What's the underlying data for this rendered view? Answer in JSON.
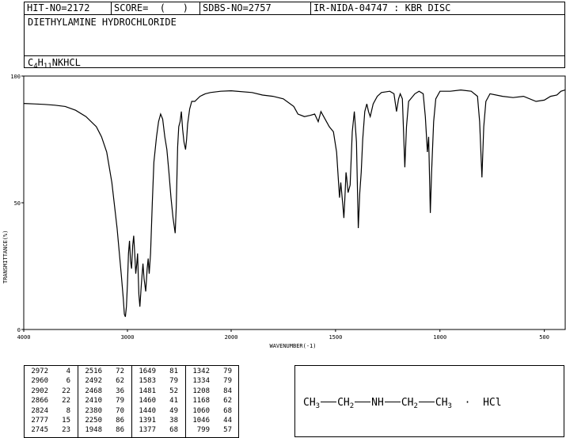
{
  "header": {
    "hit_no": "HIT-NO=2172",
    "score": "SCORE=  (   )",
    "sdbs_no": "SDBS-NO=2757",
    "ir_info": "IR-NIDA-04747 : KBR DISC",
    "compound_name": "DIETHYLAMINE HYDROCHLORIDE",
    "formula_parts": {
      "c": "C",
      "c_n": "4",
      "h": "H",
      "h_n": "11",
      "rest": "NKHCL"
    }
  },
  "chart_data": {
    "type": "line",
    "title": "",
    "xlabel": "WAVENUMBER(-1)",
    "ylabel": "TRANSMITTANCE(%)",
    "xlim": [
      4000,
      400
    ],
    "ylim": [
      0,
      100
    ],
    "x_ticks": [
      4000,
      3000,
      2000,
      1500,
      1000,
      500
    ],
    "y_ticks": [
      0,
      50,
      100
    ],
    "grid": false,
    "series": [
      {
        "name": "",
        "points": [
          [
            4000,
            89.2
          ],
          [
            3900,
            89
          ],
          [
            3800,
            88.8
          ],
          [
            3700,
            88.5
          ],
          [
            3600,
            88
          ],
          [
            3500,
            86.5
          ],
          [
            3400,
            84
          ],
          [
            3300,
            80
          ],
          [
            3250,
            76
          ],
          [
            3200,
            70
          ],
          [
            3150,
            58
          ],
          [
            3100,
            40
          ],
          [
            3060,
            22
          ],
          [
            3040,
            12
          ],
          [
            3030,
            6
          ],
          [
            3020,
            5
          ],
          [
            3010,
            9
          ],
          [
            3000,
            18
          ],
          [
            2990,
            30
          ],
          [
            2980,
            35
          ],
          [
            2970,
            27
          ],
          [
            2960,
            24
          ],
          [
            2950,
            33
          ],
          [
            2940,
            37
          ],
          [
            2930,
            30
          ],
          [
            2920,
            22
          ],
          [
            2910,
            26
          ],
          [
            2902,
            30
          ],
          [
            2890,
            14
          ],
          [
            2880,
            9
          ],
          [
            2866,
            18
          ],
          [
            2850,
            26
          ],
          [
            2840,
            20
          ],
          [
            2824,
            15
          ],
          [
            2810,
            24
          ],
          [
            2800,
            28
          ],
          [
            2790,
            22
          ],
          [
            2777,
            30
          ],
          [
            2760,
            50
          ],
          [
            2745,
            66
          ],
          [
            2720,
            76
          ],
          [
            2700,
            82
          ],
          [
            2680,
            85
          ],
          [
            2660,
            83
          ],
          [
            2640,
            76
          ],
          [
            2620,
            71
          ],
          [
            2600,
            62
          ],
          [
            2580,
            52
          ],
          [
            2560,
            44
          ],
          [
            2540,
            38
          ],
          [
            2530,
            48
          ],
          [
            2516,
            72
          ],
          [
            2505,
            80
          ],
          [
            2492,
            82
          ],
          [
            2480,
            86
          ],
          [
            2468,
            79
          ],
          [
            2455,
            74
          ],
          [
            2440,
            71
          ],
          [
            2430,
            75
          ],
          [
            2420,
            81
          ],
          [
            2410,
            84
          ],
          [
            2400,
            87
          ],
          [
            2380,
            90
          ],
          [
            2350,
            90
          ],
          [
            2300,
            92
          ],
          [
            2250,
            93
          ],
          [
            2200,
            93.5
          ],
          [
            2100,
            94
          ],
          [
            2000,
            94.2
          ],
          [
            1900,
            93.5
          ],
          [
            1850,
            92.5
          ],
          [
            1800,
            92
          ],
          [
            1750,
            91
          ],
          [
            1700,
            88
          ],
          [
            1680,
            85
          ],
          [
            1649,
            84
          ],
          [
            1620,
            84.5
          ],
          [
            1600,
            85
          ],
          [
            1583,
            82
          ],
          [
            1570,
            86
          ],
          [
            1550,
            83
          ],
          [
            1530,
            80
          ],
          [
            1510,
            78
          ],
          [
            1495,
            70
          ],
          [
            1481,
            52
          ],
          [
            1475,
            58
          ],
          [
            1465,
            49
          ],
          [
            1460,
            44
          ],
          [
            1455,
            52
          ],
          [
            1450,
            62
          ],
          [
            1447,
            60
          ],
          [
            1440,
            54
          ],
          [
            1430,
            57
          ],
          [
            1420,
            78
          ],
          [
            1410,
            86
          ],
          [
            1400,
            74
          ],
          [
            1391,
            40
          ],
          [
            1384,
            54
          ],
          [
            1377,
            62
          ],
          [
            1370,
            75
          ],
          [
            1360,
            86
          ],
          [
            1350,
            89
          ],
          [
            1342,
            86
          ],
          [
            1334,
            84
          ],
          [
            1320,
            89
          ],
          [
            1300,
            92
          ],
          [
            1280,
            93.5
          ],
          [
            1240,
            94
          ],
          [
            1220,
            93
          ],
          [
            1208,
            86
          ],
          [
            1198,
            91
          ],
          [
            1190,
            93
          ],
          [
            1180,
            91
          ],
          [
            1168,
            64
          ],
          [
            1160,
            80
          ],
          [
            1150,
            90
          ],
          [
            1120,
            93
          ],
          [
            1100,
            94
          ],
          [
            1080,
            93
          ],
          [
            1070,
            84
          ],
          [
            1060,
            70
          ],
          [
            1054,
            76
          ],
          [
            1046,
            46
          ],
          [
            1040,
            62
          ],
          [
            1030,
            82
          ],
          [
            1020,
            91
          ],
          [
            1000,
            94
          ],
          [
            950,
            94
          ],
          [
            900,
            94.5
          ],
          [
            850,
            94
          ],
          [
            820,
            92
          ],
          [
            810,
            82
          ],
          [
            799,
            60
          ],
          [
            790,
            80
          ],
          [
            780,
            90
          ],
          [
            760,
            93
          ],
          [
            700,
            92
          ],
          [
            650,
            91.5
          ],
          [
            600,
            92
          ],
          [
            540,
            90
          ],
          [
            500,
            90.5
          ],
          [
            470,
            92
          ],
          [
            440,
            92.5
          ],
          [
            420,
            94
          ],
          [
            400,
            94.5
          ]
        ]
      }
    ]
  },
  "peaks": [
    {
      "wave": "2972",
      "int": "4"
    },
    {
      "wave": "2960",
      "int": "6"
    },
    {
      "wave": "2902",
      "int": "22"
    },
    {
      "wave": "2866",
      "int": "22"
    },
    {
      "wave": "2824",
      "int": "8"
    },
    {
      "wave": "2777",
      "int": "15"
    },
    {
      "wave": "2745",
      "int": "23"
    },
    {
      "wave": "2516",
      "int": "72"
    },
    {
      "wave": "2492",
      "int": "62"
    },
    {
      "wave": "2468",
      "int": "36"
    },
    {
      "wave": "2410",
      "int": "79"
    },
    {
      "wave": "2380",
      "int": "70"
    },
    {
      "wave": "2250",
      "int": "86"
    },
    {
      "wave": "1948",
      "int": "86"
    },
    {
      "wave": "1649",
      "int": "81"
    },
    {
      "wave": "1583",
      "int": "79"
    },
    {
      "wave": "1481",
      "int": "52"
    },
    {
      "wave": "1460",
      "int": "41"
    },
    {
      "wave": "1440",
      "int": "49"
    },
    {
      "wave": "1391",
      "int": "38"
    },
    {
      "wave": "1377",
      "int": "68"
    },
    {
      "wave": "1342",
      "int": "79"
    },
    {
      "wave": "1334",
      "int": "79"
    },
    {
      "wave": "1208",
      "int": "84"
    },
    {
      "wave": "1168",
      "int": "62"
    },
    {
      "wave": "1060",
      "int": "68"
    },
    {
      "wave": "1046",
      "int": "44"
    },
    {
      "wave": "799",
      "int": "57"
    }
  ],
  "structure": {
    "ch3a": "CH",
    "ch3a_n": "3",
    "ch2a": "CH",
    "ch2a_n": "2",
    "nh": "NH",
    "ch2b": "CH",
    "ch2b_n": "2",
    "ch3b": "CH",
    "ch3b_n": "3",
    "dot": "·",
    "hcl": "HCl"
  }
}
